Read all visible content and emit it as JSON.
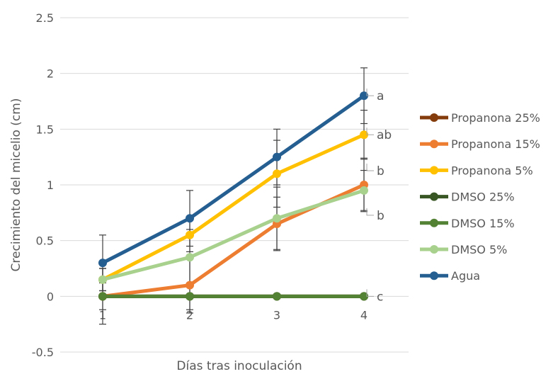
{
  "chart_data": {
    "type": "line",
    "title": "",
    "xlabel": "Días tras inoculación",
    "ylabel": "Crecimiento del micelio (cm)",
    "x": [
      1,
      2,
      3,
      4
    ],
    "x_tick_labels": [
      "1",
      "2",
      "3",
      "4"
    ],
    "ylim": [
      -0.5,
      2.5
    ],
    "y_ticks": [
      "-0.5",
      "0",
      "0.5",
      "1",
      "1.5",
      "2",
      "2.5"
    ],
    "grid": true,
    "legend_position": "right",
    "series": [
      {
        "name": "Propanona 25%",
        "color": "#843C0C",
        "values": [
          0,
          0,
          0,
          0
        ]
      },
      {
        "name": "Propanona 15%",
        "color": "#ED7D31",
        "values": [
          0,
          0.1,
          0.65,
          1.0
        ],
        "error": [
          0.25,
          0.25,
          0.24,
          0.24
        ]
      },
      {
        "name": "Propanona 5%",
        "color": "#FFC000",
        "values": [
          0.15,
          0.55,
          1.1,
          1.45
        ],
        "error": [
          0.1,
          0.15,
          0.3,
          0.22
        ]
      },
      {
        "name": "DMSO 25%",
        "color": "#375623",
        "values": [
          0,
          0,
          0,
          0
        ]
      },
      {
        "name": "DMSO 15%",
        "color": "#548235",
        "values": [
          0,
          0,
          0,
          0
        ],
        "error": [
          0.12,
          0.12,
          0,
          0
        ]
      },
      {
        "name": "DMSO 5%",
        "color": "#A9D18E",
        "values": [
          0.15,
          0.35,
          0.7,
          0.95
        ],
        "error": [
          0.1,
          0.25,
          0.28,
          0.18
        ]
      },
      {
        "name": "Agua",
        "color": "#255E91",
        "values": [
          0.3,
          0.7,
          1.25,
          1.8
        ],
        "error": [
          0.25,
          0.25,
          0.25,
          0.25
        ]
      }
    ],
    "annotations": [
      {
        "text": "a",
        "series": "Agua",
        "x": 4
      },
      {
        "text": "ab",
        "series": "Propanona 5%",
        "x": 4
      },
      {
        "text": "b",
        "series": "Propanona 15%",
        "x": 4
      },
      {
        "text": "b",
        "series": "DMSO 5%",
        "x": 4
      },
      {
        "text": "c",
        "series": "DMSO 25%",
        "x": 4
      }
    ]
  }
}
